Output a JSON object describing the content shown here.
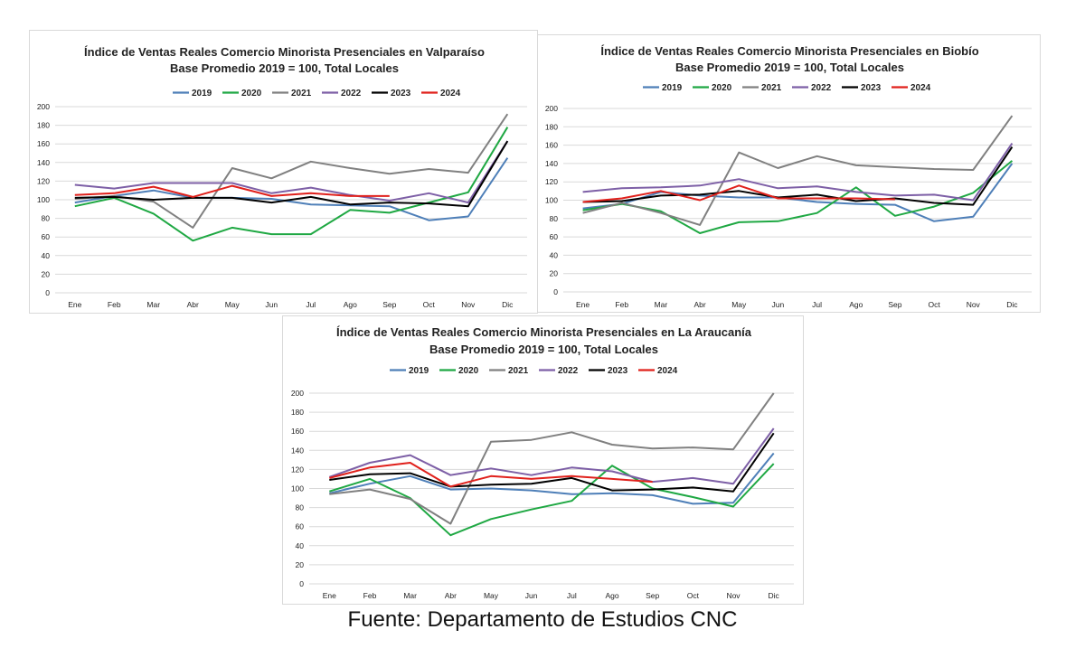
{
  "source": "Fuente: Departamento de Estudios CNC",
  "colors": {
    "2019": "#4e7fb8",
    "2020": "#1fa843",
    "2021": "#808080",
    "2022": "#7d5fa6",
    "2023": "#000000",
    "2024": "#e0201b"
  },
  "chart_data": [
    {
      "type": "line",
      "title": "Índice de Ventas Reales Comercio Minorista Presenciales en Valparaíso",
      "subtitle": "Base Promedio 2019 = 100, Total Locales",
      "categories": [
        "Ene",
        "Feb",
        "Mar",
        "Abr",
        "May",
        "Jun",
        "Jul",
        "Ago",
        "Sep",
        "Oct",
        "Nov",
        "Dic"
      ],
      "ylim": [
        0,
        200
      ],
      "yticks": [
        0,
        20,
        40,
        60,
        80,
        100,
        120,
        140,
        160,
        180,
        200
      ],
      "grid": true,
      "legend": "top",
      "series": [
        {
          "name": "2019",
          "values": [
            97,
            104,
            110,
            102,
            102,
            101,
            95,
            94,
            93,
            78,
            82,
            145
          ]
        },
        {
          "name": "2020",
          "values": [
            93,
            102,
            85,
            56,
            70,
            63,
            63,
            89,
            86,
            97,
            108,
            178
          ]
        },
        {
          "name": "2021",
          "values": [
            101,
            104,
            98,
            70,
            134,
            123,
            141,
            134,
            128,
            133,
            129,
            192
          ]
        },
        {
          "name": "2022",
          "values": [
            116,
            112,
            118,
            118,
            118,
            107,
            113,
            105,
            99,
            107,
            97,
            163
          ]
        },
        {
          "name": "2023",
          "values": [
            102,
            103,
            100,
            102,
            102,
            97,
            103,
            95,
            97,
            96,
            93,
            163
          ]
        },
        {
          "name": "2024",
          "values": [
            105,
            107,
            114,
            103,
            115,
            104,
            107,
            104,
            104,
            null,
            null,
            null
          ]
        }
      ]
    },
    {
      "type": "line",
      "title": "Índice de Ventas Reales Comercio Minorista Presenciales en Biobío",
      "subtitle": "Base Promedio 2019 = 100, Total Locales",
      "categories": [
        "Ene",
        "Feb",
        "Mar",
        "Abr",
        "May",
        "Jun",
        "Jul",
        "Ago",
        "Sep",
        "Oct",
        "Nov",
        "Dic"
      ],
      "ylim": [
        0,
        200
      ],
      "yticks": [
        0,
        20,
        40,
        60,
        80,
        100,
        120,
        140,
        160,
        180,
        200
      ],
      "grid": true,
      "legend": "top",
      "series": [
        {
          "name": "2019",
          "values": [
            91,
            96,
            109,
            105,
            103,
            103,
            98,
            96,
            95,
            77,
            82,
            140
          ]
        },
        {
          "name": "2020",
          "values": [
            89,
            96,
            88,
            64,
            76,
            77,
            86,
            114,
            83,
            93,
            108,
            143
          ]
        },
        {
          "name": "2021",
          "values": [
            86,
            97,
            86,
            73,
            152,
            135,
            148,
            138,
            136,
            134,
            133,
            192
          ]
        },
        {
          "name": "2022",
          "values": [
            109,
            113,
            114,
            116,
            123,
            113,
            115,
            109,
            105,
            106,
            100,
            162
          ]
        },
        {
          "name": "2023",
          "values": [
            98,
            99,
            105,
            106,
            110,
            103,
            106,
            99,
            102,
            97,
            95,
            158
          ]
        },
        {
          "name": "2024",
          "values": [
            98,
            102,
            110,
            100,
            116,
            102,
            102,
            102,
            101,
            null,
            null,
            null
          ]
        }
      ]
    },
    {
      "type": "line",
      "title": "Índice de Ventas Reales Comercio Minorista Presenciales en La Araucanía",
      "subtitle": "Base Promedio 2019 = 100, Total Locales",
      "categories": [
        "Ene",
        "Feb",
        "Mar",
        "Abr",
        "May",
        "Jun",
        "Jul",
        "Ago",
        "Sep",
        "Oct",
        "Nov",
        "Dic"
      ],
      "ylim": [
        0,
        200
      ],
      "yticks": [
        0,
        20,
        40,
        60,
        80,
        100,
        120,
        140,
        160,
        180,
        200
      ],
      "grid": true,
      "legend": "top",
      "series": [
        {
          "name": "2019",
          "values": [
            95,
            105,
            113,
            99,
            100,
            98,
            94,
            95,
            93,
            84,
            85,
            137
          ]
        },
        {
          "name": "2020",
          "values": [
            97,
            110,
            90,
            51,
            68,
            78,
            87,
            124,
            100,
            91,
            81,
            126
          ]
        },
        {
          "name": "2021",
          "values": [
            94,
            99,
            89,
            63,
            149,
            151,
            159,
            146,
            142,
            143,
            141,
            201
          ]
        },
        {
          "name": "2022",
          "values": [
            112,
            127,
            135,
            114,
            121,
            114,
            122,
            118,
            107,
            111,
            105,
            163
          ]
        },
        {
          "name": "2023",
          "values": [
            109,
            115,
            116,
            102,
            104,
            105,
            111,
            98,
            99,
            101,
            97,
            158
          ]
        },
        {
          "name": "2024",
          "values": [
            111,
            122,
            127,
            102,
            113,
            110,
            113,
            110,
            107,
            null,
            null,
            null
          ]
        }
      ]
    }
  ]
}
